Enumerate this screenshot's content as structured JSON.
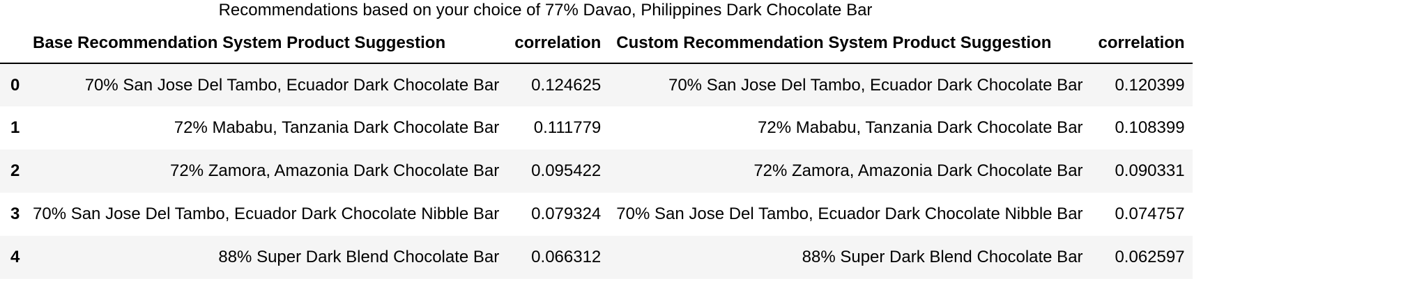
{
  "caption": "Recommendations based on your choice of 77% Davao, Philippines Dark Chocolate Bar",
  "columns": {
    "base_suggestion": "Base Recommendation System Product Suggestion",
    "base_correlation": "correlation",
    "custom_suggestion": "Custom Recommendation System Product Suggestion",
    "custom_correlation": "correlation"
  },
  "rows": [
    {
      "index": "0",
      "base_suggestion": "70% San Jose Del Tambo, Ecuador Dark Chocolate Bar",
      "base_correlation": "0.124625",
      "custom_suggestion": "70% San Jose Del Tambo, Ecuador Dark Chocolate Bar",
      "custom_correlation": "0.120399"
    },
    {
      "index": "1",
      "base_suggestion": "72% Mababu, Tanzania Dark Chocolate Bar",
      "base_correlation": "0.111779",
      "custom_suggestion": "72% Mababu, Tanzania Dark Chocolate Bar",
      "custom_correlation": "0.108399"
    },
    {
      "index": "2",
      "base_suggestion": "72% Zamora, Amazonia Dark Chocolate Bar",
      "base_correlation": "0.095422",
      "custom_suggestion": "72% Zamora, Amazonia Dark Chocolate Bar",
      "custom_correlation": "0.090331"
    },
    {
      "index": "3",
      "base_suggestion": "70% San Jose Del Tambo, Ecuador Dark Chocolate Nibble Bar",
      "base_correlation": "0.079324",
      "custom_suggestion": "70% San Jose Del Tambo, Ecuador Dark Chocolate Nibble Bar",
      "custom_correlation": "0.074757"
    },
    {
      "index": "4",
      "base_suggestion": "88% Super Dark Blend Chocolate Bar",
      "base_correlation": "0.066312",
      "custom_suggestion": "88% Super Dark Blend Chocolate Bar",
      "custom_correlation": "0.062597"
    }
  ],
  "colors": {
    "row_stripe": "#f5f5f5",
    "header_rule": "#000000"
  }
}
